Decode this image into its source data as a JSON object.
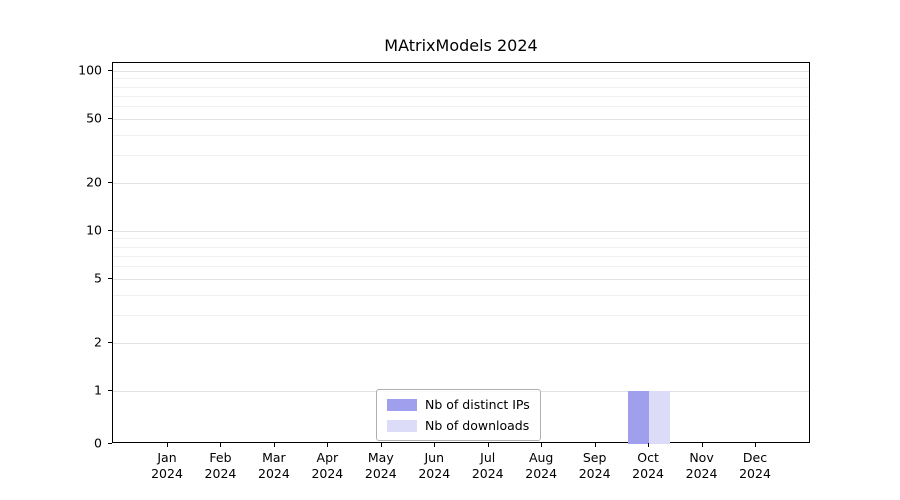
{
  "chart_data": {
    "type": "bar",
    "title": "MAtrixModels 2024",
    "categories": [
      "Jan 2024",
      "Feb 2024",
      "Mar 2024",
      "Apr 2024",
      "May 2024",
      "Jun 2024",
      "Jul 2024",
      "Aug 2024",
      "Sep 2024",
      "Oct 2024",
      "Nov 2024",
      "Dec 2024"
    ],
    "series": [
      {
        "name": "Nb of distinct IPs",
        "color": "#9f9fee",
        "values": [
          0,
          0,
          0,
          0,
          0,
          0,
          0,
          0,
          0,
          1,
          0,
          0
        ]
      },
      {
        "name": "Nb of downloads",
        "color": "#dcdcf8",
        "values": [
          0,
          0,
          0,
          0,
          0,
          0,
          0,
          0,
          0,
          1,
          0,
          0
        ]
      }
    ],
    "yscale": "symlog",
    "yticks": [
      0,
      1,
      2,
      5,
      10,
      20,
      50,
      100
    ],
    "ylim": [
      0,
      100
    ],
    "xlabel": "",
    "ylabel": "",
    "grid": "horizontal",
    "legend_position": "lower center"
  }
}
